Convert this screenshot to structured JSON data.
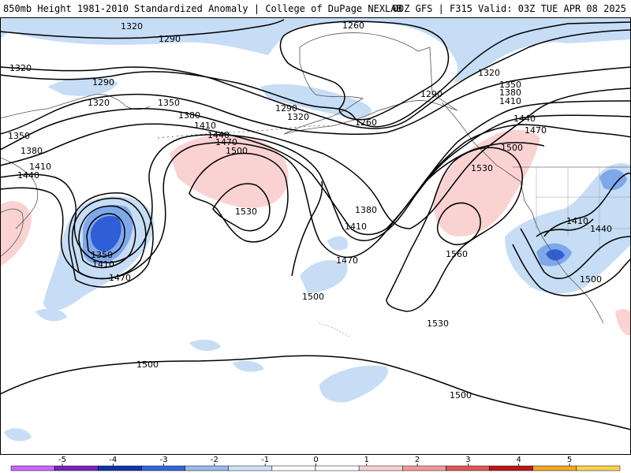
{
  "header": {
    "title_left": "850mb Height 1981-2010 Standardized Anomaly | College of DuPage NEXLAB",
    "title_right": "00Z GFS | F315 Valid: 03Z TUE APR 08 2025"
  },
  "contour_labels": {
    "c1320_a": "1320",
    "c1290_a": "1290",
    "c1260_a": "1260",
    "c1320_b": "1320",
    "c1290_b": "1290",
    "c1320_c": "1320",
    "c1350_a": "1350",
    "c1290_c": "1290",
    "c1320_d": "1320",
    "c1260_b": "1260",
    "c1380_a": "1380",
    "c1410_a": "1410",
    "c1440_a": "1440",
    "c1470_a": "1470",
    "c1500_a": "1500",
    "c1350_b": "1350",
    "c1380_b": "1380",
    "c1410_b": "1410",
    "c1440_b": "1440",
    "c1290_d": "1290",
    "c1320_e": "1320",
    "c1350_c": "1350",
    "c1380_c": "1380",
    "c1410_c": "1410",
    "c1440_c": "1440",
    "c1470_b": "1470",
    "c1500_b": "1500",
    "c1530_a": "1530",
    "c1560": "1560",
    "c1530_b": "1530",
    "c1380_d": "1380",
    "c1410_d": "1410",
    "c1470_c": "1470",
    "c1500_c": "1500",
    "c1530_c": "1530",
    "c1350_d": "1350",
    "c1410_e": "1410",
    "c1470_d": "1470",
    "c1410_f": "1410",
    "c1440_d": "1440",
    "c1500_d": "1500",
    "c1500_e": "1500",
    "c1500_f": "1500"
  },
  "colorbar": {
    "ticks": [
      "-5",
      "-4",
      "-3",
      "-2",
      "-1",
      "0",
      "1",
      "2",
      "3",
      "4",
      "5"
    ],
    "colors": [
      "#cc66ff",
      "#7722bb",
      "#1133aa",
      "#3366dd",
      "#99bbee",
      "#cfe3f6",
      "#ffffff",
      "#ffffff",
      "#fcd0d0",
      "#f29a9a",
      "#e05555",
      "#b81818",
      "#f5a623",
      "#ffd24d"
    ]
  },
  "fills": {
    "neg_light": "#c6ddf5",
    "neg_mid": "#7fa8ea",
    "neg_dark": "#2f5ed6",
    "pos_light": "#fbd2d2"
  }
}
